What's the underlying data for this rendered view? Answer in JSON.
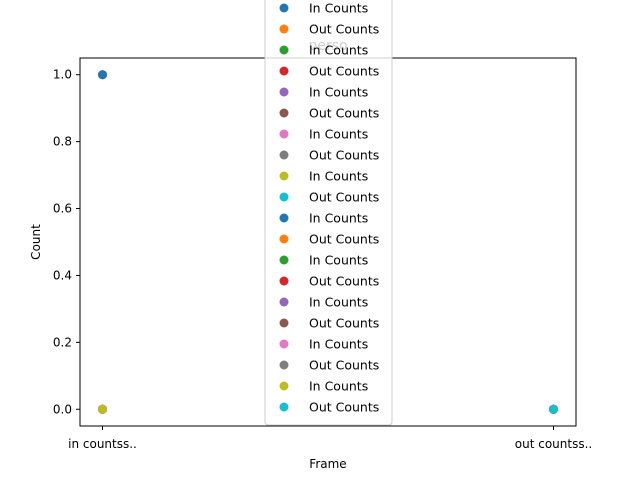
{
  "chart_data": {
    "type": "scatter",
    "title": "perso",
    "xlabel": "Frame",
    "ylabel": "Count",
    "categories": [
      "in countss..",
      "out countss.."
    ],
    "ylim": [
      -0.05,
      1.05
    ],
    "yticks": [
      "0.0",
      "0.2",
      "0.4",
      "0.6",
      "0.8",
      "1.0"
    ],
    "ytick_values": [
      0,
      0.2,
      0.4,
      0.6,
      0.8,
      1.0
    ],
    "grid": false,
    "legend_position": "top-center",
    "series": [
      {
        "name": "In Counts",
        "color": "#1f77b4",
        "points": [
          [
            "in countss..",
            0
          ],
          [
            "in countss..",
            1
          ]
        ]
      },
      {
        "name": "Out Counts",
        "color": "#ff7f0e",
        "points": [
          [
            "out countss..",
            0
          ]
        ]
      },
      {
        "name": "In Counts",
        "color": "#2ca02c",
        "points": [
          [
            "in countss..",
            0
          ],
          [
            "in countss..",
            1
          ]
        ]
      },
      {
        "name": "Out Counts",
        "color": "#d62728",
        "points": [
          [
            "out countss..",
            0
          ]
        ]
      },
      {
        "name": "In Counts",
        "color": "#9467bd",
        "points": [
          [
            "in countss..",
            0
          ],
          [
            "in countss..",
            1
          ]
        ]
      },
      {
        "name": "Out Counts",
        "color": "#8c564b",
        "points": [
          [
            "out countss..",
            0
          ]
        ]
      },
      {
        "name": "In Counts",
        "color": "#e377c2",
        "points": [
          [
            "in countss..",
            0
          ],
          [
            "in countss..",
            1
          ]
        ]
      },
      {
        "name": "Out Counts",
        "color": "#7f7f7f",
        "points": [
          [
            "out countss..",
            0
          ]
        ]
      },
      {
        "name": "In Counts",
        "color": "#bcbd22",
        "points": [
          [
            "in countss..",
            0
          ],
          [
            "in countss..",
            1
          ]
        ]
      },
      {
        "name": "Out Counts",
        "color": "#17becf",
        "points": [
          [
            "out countss..",
            0
          ]
        ]
      },
      {
        "name": "In Counts",
        "color": "#1f77b4",
        "points": [
          [
            "in countss..",
            0
          ],
          [
            "in countss..",
            1
          ]
        ]
      },
      {
        "name": "Out Counts",
        "color": "#ff7f0e",
        "points": [
          [
            "out countss..",
            0
          ]
        ]
      },
      {
        "name": "In Counts",
        "color": "#2ca02c",
        "points": [
          [
            "in countss..",
            0
          ],
          [
            "in countss..",
            0
          ]
        ]
      },
      {
        "name": "Out Counts",
        "color": "#d62728",
        "points": [
          [
            "out countss..",
            0
          ]
        ]
      },
      {
        "name": "In Counts",
        "color": "#9467bd",
        "points": [
          [
            "in countss..",
            0
          ]
        ]
      },
      {
        "name": "Out Counts",
        "color": "#8c564b",
        "points": [
          [
            "out countss..",
            0
          ]
        ]
      },
      {
        "name": "In Counts",
        "color": "#e377c2",
        "points": [
          [
            "in countss..",
            0
          ]
        ]
      },
      {
        "name": "Out Counts",
        "color": "#7f7f7f",
        "points": [
          [
            "out countss..",
            0
          ]
        ]
      },
      {
        "name": "In Counts",
        "color": "#bcbd22",
        "points": [
          [
            "in countss..",
            0
          ]
        ]
      },
      {
        "name": "Out Counts",
        "color": "#17becf",
        "points": [
          [
            "out countss..",
            0
          ]
        ]
      }
    ]
  }
}
